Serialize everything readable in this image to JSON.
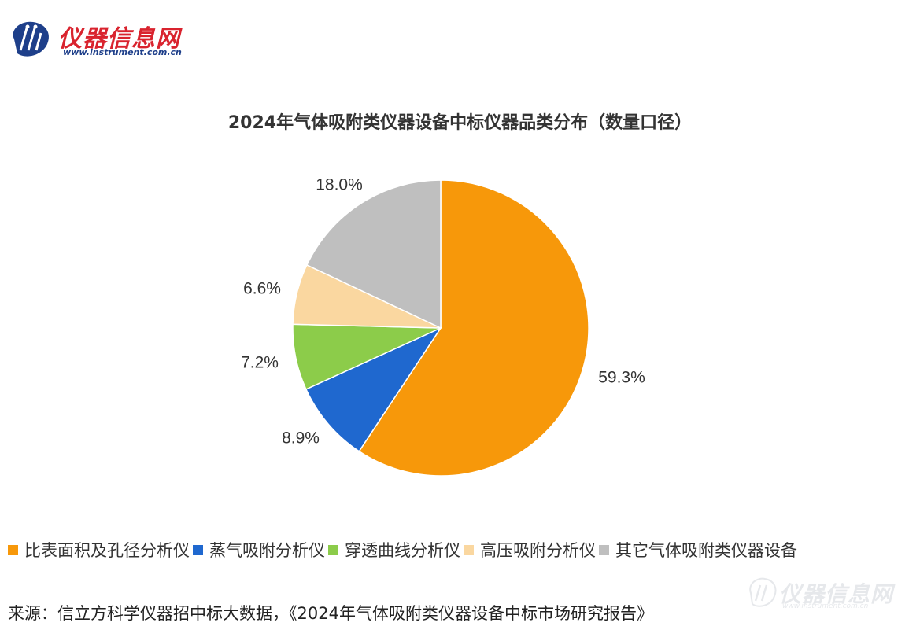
{
  "logo": {
    "name": "仪器信息网",
    "url": "www.instrument.com.cn"
  },
  "colors": {
    "brand_red": "#d9232e",
    "brand_blue": "#1e3f8a",
    "slice_colors": [
      "#f7980a",
      "#1f68cf",
      "#8ccc4a",
      "#fad7a0",
      "#bfbfbf"
    ]
  },
  "chart_data": {
    "type": "pie",
    "title": "2024年气体吸附类仪器设备中标仪器品类分布（数量口径）",
    "categories": [
      "比表面积及孔径分析仪",
      "蒸气吸附分析仪",
      "穿透曲线分析仪",
      "高压吸附分析仪",
      "其它气体吸附类仪器设备"
    ],
    "values": [
      59.3,
      8.9,
      7.2,
      6.6,
      18.0
    ],
    "labels": [
      "59.3%",
      "8.9%",
      "7.2%",
      "6.6%",
      "18.0%"
    ],
    "legend_position": "bottom"
  },
  "source": "来源：信立方科学仪器招中标大数据，《2024年气体吸附类仪器设备中标市场研究报告》",
  "watermark": {
    "text": "仪器信息网",
    "url": "www.instrument.com.cn"
  }
}
